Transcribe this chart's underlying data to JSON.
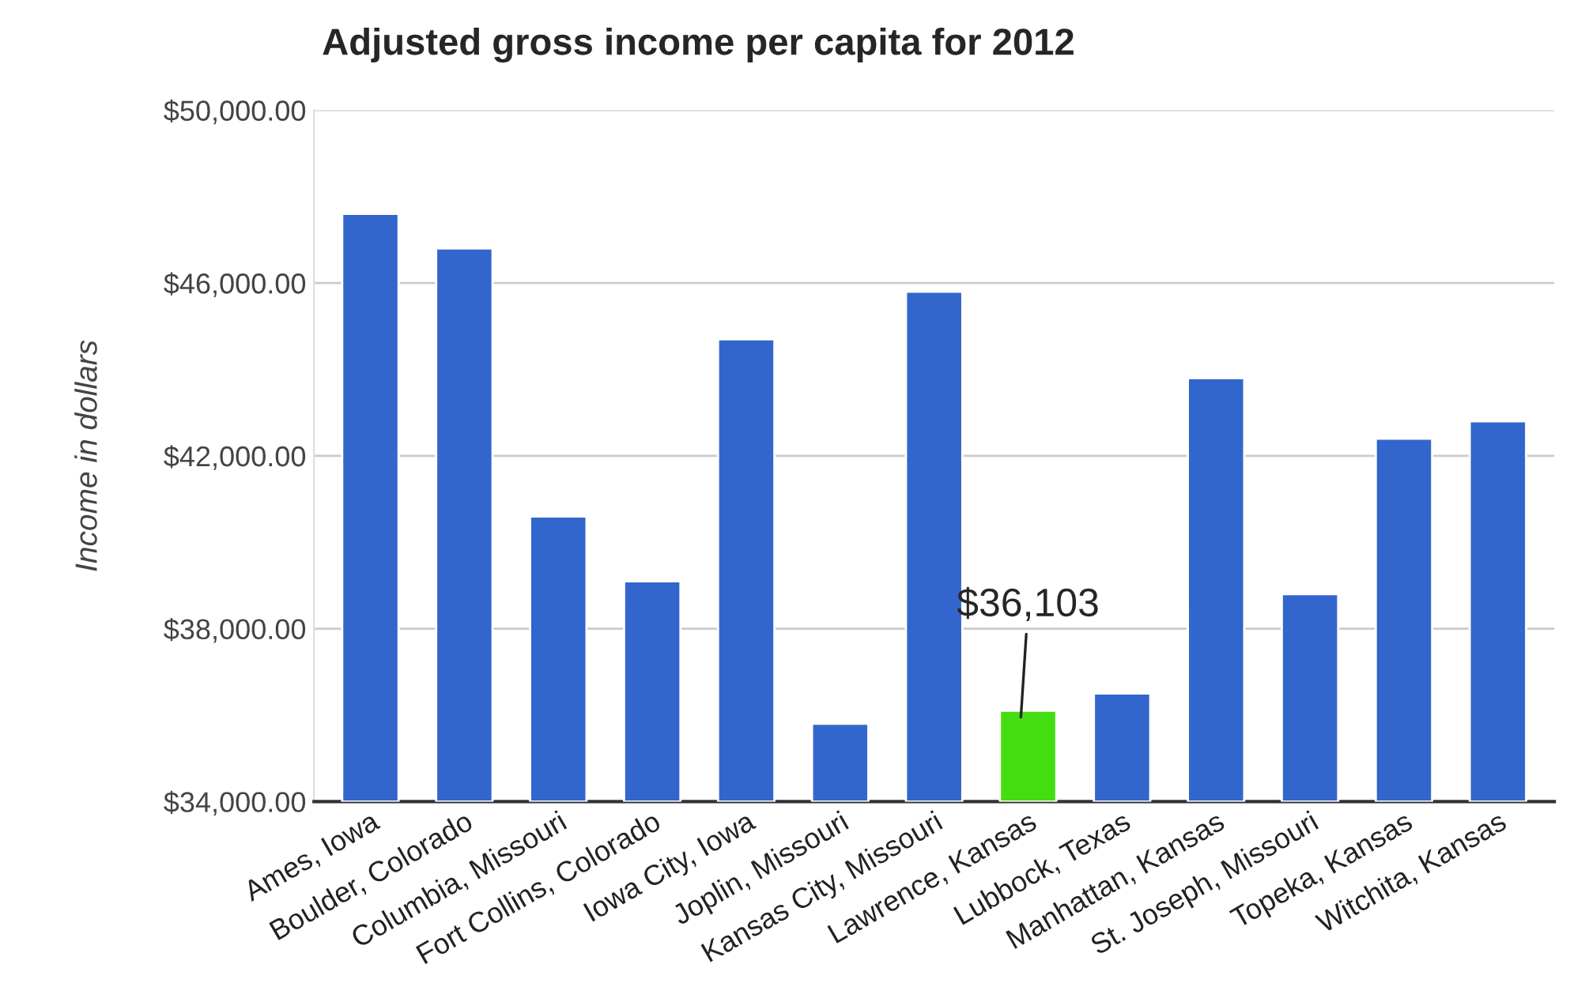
{
  "chart_data": {
    "type": "bar",
    "title": "Adjusted gross income per capita for 2012",
    "ylabel": "Income in dollars",
    "categories": [
      "Ames, Iowa",
      "Boulder, Colorado",
      "Columbia, Missouri",
      "Fort Collins, Colorado",
      "Iowa City, Iowa",
      "Joplin, Missouri",
      "Kansas City, Missouri",
      "Lawrence, Kansas",
      "Lubbock, Texas",
      "Manhattan, Kansas",
      "St. Joseph, Missouri",
      "Topeka, Kansas",
      "Witchita, Kansas"
    ],
    "values": [
      47600,
      46800,
      40600,
      39100,
      44700,
      35800,
      45800,
      36103,
      36500,
      43800,
      38800,
      42400,
      42800
    ],
    "colors": [
      "#3366cc",
      "#3366cc",
      "#3366cc",
      "#3366cc",
      "#3366cc",
      "#3366cc",
      "#3366cc",
      "#44dd11",
      "#3366cc",
      "#3366cc",
      "#3366cc",
      "#3366cc",
      "#3366cc"
    ],
    "ylim": [
      34000,
      50000
    ],
    "yticks": [
      {
        "value": 34000,
        "label": "$34,000.00"
      },
      {
        "value": 38000,
        "label": "$38,000.00"
      },
      {
        "value": 42000,
        "label": "$42,000.00"
      },
      {
        "value": 46000,
        "label": "$46,000.00"
      },
      {
        "value": 50000,
        "label": "$50,000.00"
      }
    ],
    "annotations": [
      {
        "text": "$36,103",
        "x": "Lawrence, Kansas",
        "y": 36103
      }
    ],
    "grid": "y"
  }
}
